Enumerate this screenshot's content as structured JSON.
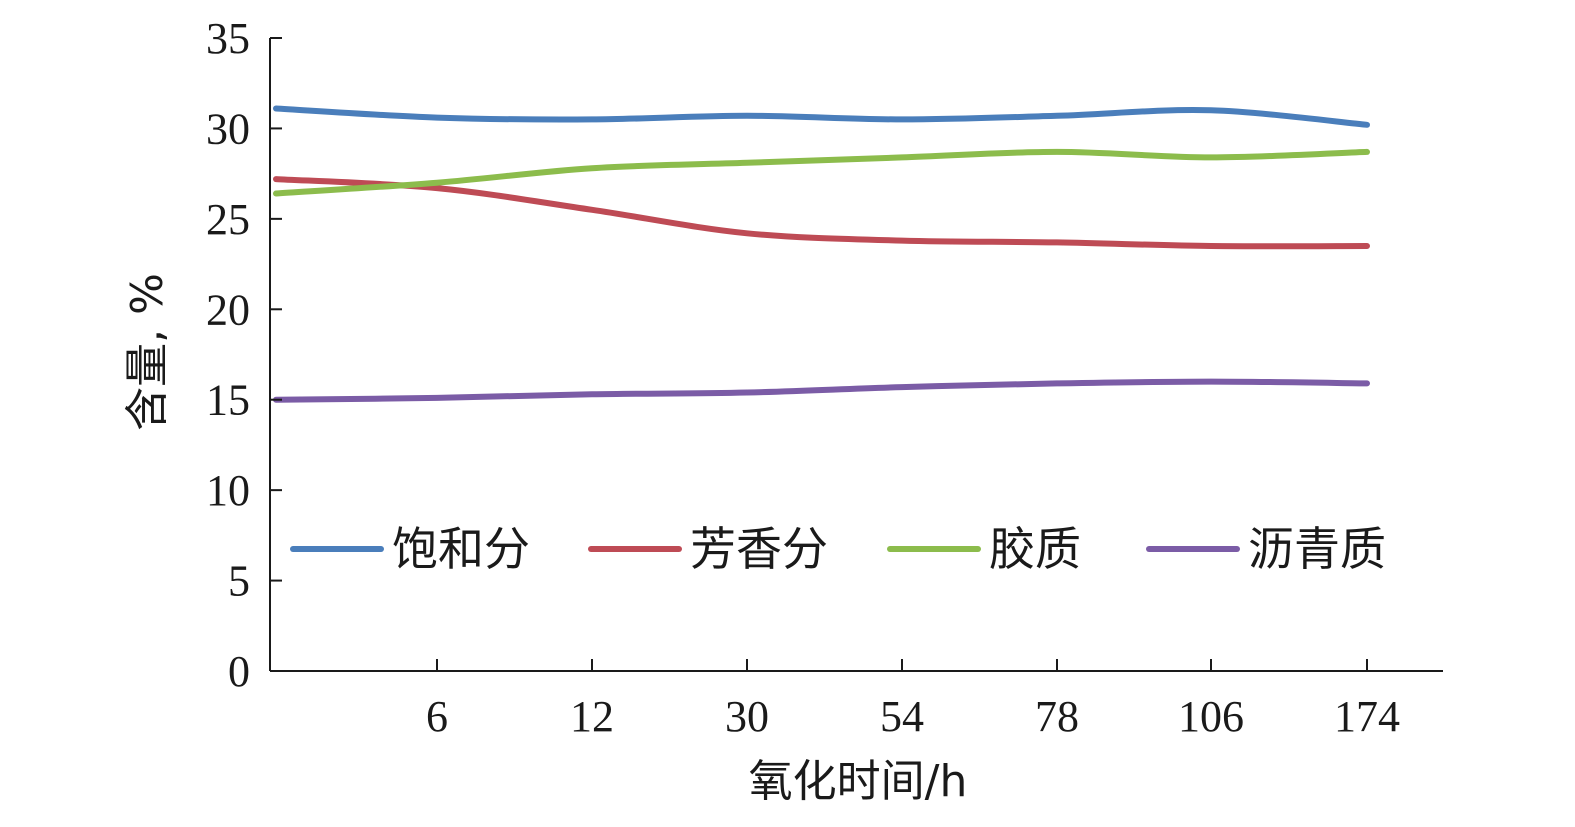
{
  "chart_data": {
    "type": "line",
    "title": "",
    "xlabel": "氧化时间/h",
    "ylabel": "含量, %",
    "ylim": [
      0,
      35
    ],
    "yticks": [
      0,
      5,
      10,
      15,
      20,
      25,
      30,
      35
    ],
    "x": [
      "0",
      "6",
      "12",
      "30",
      "54",
      "78",
      "106",
      "174"
    ],
    "xtick_labels": [
      "6",
      "12",
      "30",
      "54",
      "78",
      "106",
      "174"
    ],
    "grid": false,
    "legend_position": "lower-center",
    "series": [
      {
        "name": "饱和分",
        "color": "#4a7ebb",
        "values": [
          31.1,
          30.6,
          30.5,
          30.7,
          30.5,
          30.7,
          31.0,
          30.2
        ]
      },
      {
        "name": "芳香分",
        "color": "#be4b55",
        "values": [
          27.2,
          26.7,
          25.5,
          24.2,
          23.8,
          23.7,
          23.5,
          23.5
        ]
      },
      {
        "name": "胶质",
        "color": "#8cbc4c",
        "values": [
          26.4,
          27.0,
          27.8,
          28.1,
          28.4,
          28.7,
          28.4,
          28.7
        ]
      },
      {
        "name": "沥青质",
        "color": "#7b5ca6",
        "values": [
          15.0,
          15.1,
          15.3,
          15.4,
          15.7,
          15.9,
          16.0,
          15.9
        ]
      }
    ]
  }
}
